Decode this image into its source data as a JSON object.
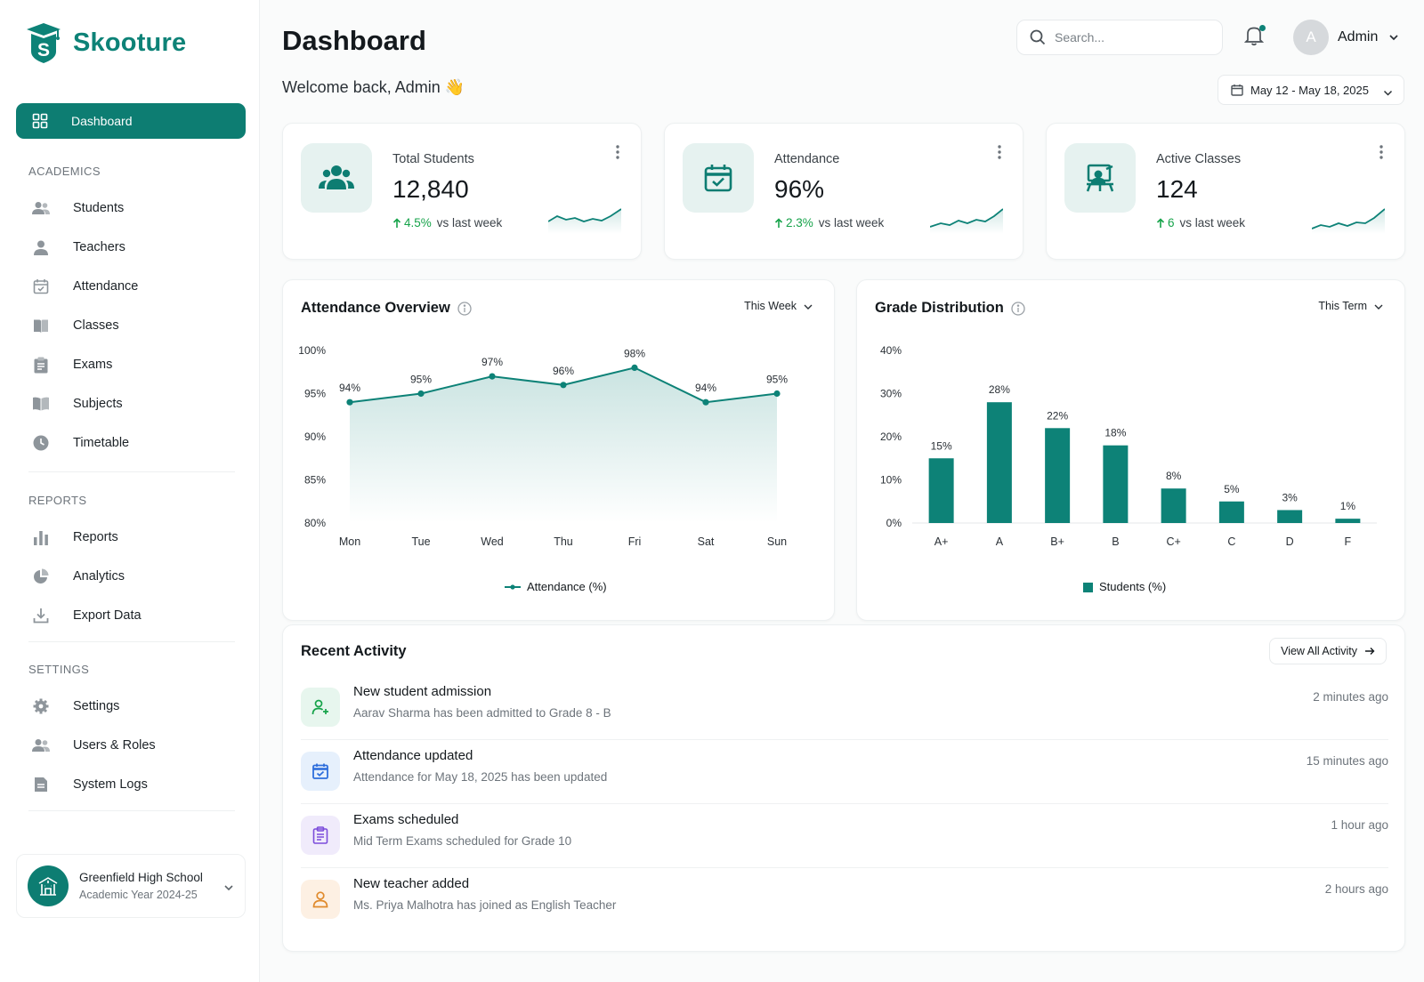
{
  "brand": {
    "name": "Skooture"
  },
  "nav": {
    "active": "Dashboard",
    "sections": [
      {
        "label": "ACADEMICS",
        "items": [
          "Students",
          "Teachers",
          "Attendance",
          "Classes",
          "Exams",
          "Subjects",
          "Timetable"
        ]
      },
      {
        "label": "REPORTS",
        "items": [
          "Reports",
          "Analytics",
          "Export Data"
        ]
      },
      {
        "label": "SETTINGS",
        "items": [
          "Settings",
          "Users & Roles",
          "System Logs"
        ]
      }
    ]
  },
  "school": {
    "name": "Greenfield High School",
    "year": "Academic Year 2024-25",
    "accent": "#0d7d72"
  },
  "header": {
    "title": "Dashboard",
    "welcome": "Welcome back, Admin 👋",
    "search_placeholder": "Search...",
    "user_initial": "A",
    "user_name": "Admin",
    "date_range": "May 12 - May 18, 2025"
  },
  "stats": [
    {
      "label": "Total Students",
      "value": "12,840",
      "delta": "4.5%",
      "delta_suffix": "vs last week",
      "icon": "users-icon"
    },
    {
      "label": "Attendance",
      "value": "96%",
      "delta": "2.3%",
      "delta_suffix": "vs last week",
      "icon": "calendar-check-icon"
    },
    {
      "label": "Active Classes",
      "value": "124",
      "delta": "6",
      "delta_suffix": "vs last week",
      "icon": "classroom-icon"
    }
  ],
  "attendance_chart": {
    "title": "Attendance Overview",
    "filter": "This Week",
    "legend": "Attendance (%)"
  },
  "grade_chart": {
    "title": "Grade Distribution",
    "filter": "This Term",
    "legend": "Students (%)"
  },
  "chart_data": [
    {
      "type": "line",
      "title": "Attendance Overview",
      "categories": [
        "Mon",
        "Tue",
        "Wed",
        "Thu",
        "Fri",
        "Sat",
        "Sun"
      ],
      "series": [
        {
          "name": "Attendance (%)",
          "values": [
            94,
            95,
            97,
            96,
            98,
            94,
            95
          ]
        }
      ],
      "data_labels": [
        "94%",
        "95%",
        "97%",
        "96%",
        "98%",
        "94%",
        "95%"
      ],
      "y_ticks": [
        "80%",
        "85%",
        "90%",
        "95%",
        "100%"
      ],
      "ylim": [
        80,
        100
      ],
      "legend": "bottom",
      "color": "#0d8277"
    },
    {
      "type": "bar",
      "title": "Grade Distribution",
      "categories": [
        "A+",
        "A",
        "B+",
        "B",
        "C+",
        "C",
        "D",
        "F"
      ],
      "series": [
        {
          "name": "Students (%)",
          "values": [
            15,
            28,
            22,
            18,
            8,
            5,
            3,
            1
          ]
        }
      ],
      "data_labels": [
        "15%",
        "28%",
        "22%",
        "18%",
        "8%",
        "5%",
        "3%",
        "1%"
      ],
      "y_ticks": [
        "0%",
        "10%",
        "20%",
        "30%",
        "40%"
      ],
      "ylim": [
        0,
        40
      ],
      "legend": "bottom",
      "color": "#0d8277"
    }
  ],
  "activity": {
    "title": "Recent Activity",
    "view_all": "View All Activity",
    "items": [
      {
        "title": "New student admission",
        "desc": "Aarav Sharma has been admitted to Grade 8 - B",
        "time": "2 minutes ago",
        "icon": "user-plus-icon",
        "bg": "#e7f6ee",
        "fg": "#16a34a"
      },
      {
        "title": "Attendance updated",
        "desc": "Attendance for May 18, 2025 has been updated",
        "time": "15 minutes ago",
        "icon": "calendar-check-icon",
        "bg": "#e6f0fc",
        "fg": "#2f6fdc"
      },
      {
        "title": "Exams scheduled",
        "desc": "Mid Term Exams scheduled for Grade 10",
        "time": "1 hour ago",
        "icon": "clipboard-icon",
        "bg": "#f0ebfb",
        "fg": "#7c4ddb"
      },
      {
        "title": "New teacher added",
        "desc": "Ms. Priya Malhotra has joined as English Teacher",
        "time": "2 hours ago",
        "icon": "user-icon",
        "bg": "#fdf0e3",
        "fg": "#e08a2c"
      }
    ]
  }
}
